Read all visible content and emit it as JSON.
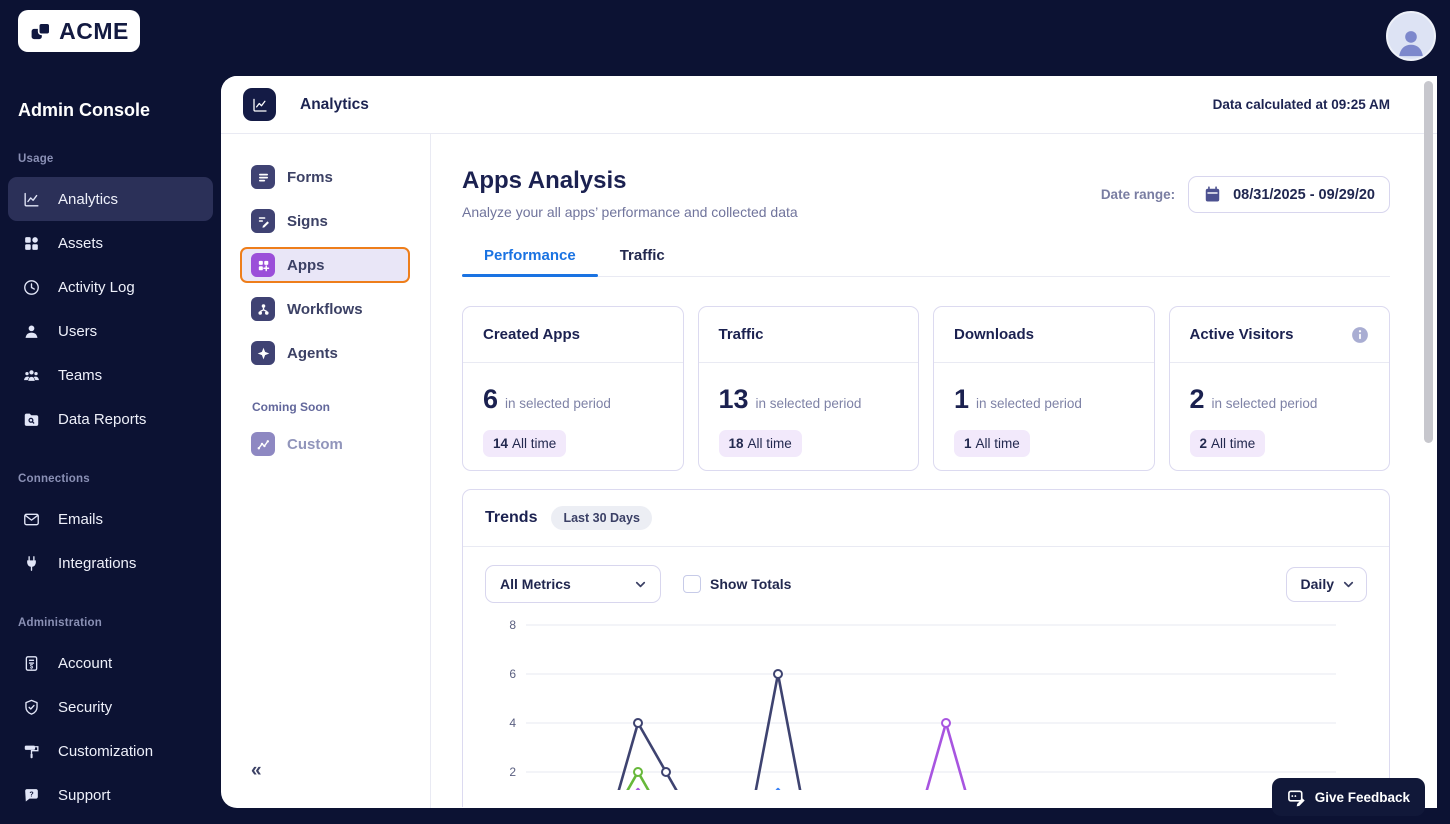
{
  "topbar": {
    "logo_text": "ACME"
  },
  "sidebar": {
    "title": "Admin Console",
    "sections": [
      {
        "label": "Usage",
        "items": [
          {
            "label": "Analytics",
            "icon": "analytics",
            "active": true
          },
          {
            "label": "Assets",
            "icon": "assets"
          },
          {
            "label": "Activity Log",
            "icon": "activity-log"
          },
          {
            "label": "Users",
            "icon": "users"
          },
          {
            "label": "Teams",
            "icon": "teams"
          },
          {
            "label": "Data Reports",
            "icon": "data-reports"
          }
        ]
      },
      {
        "label": "Connections",
        "items": [
          {
            "label": "Emails",
            "icon": "emails"
          },
          {
            "label": "Integrations",
            "icon": "integrations"
          }
        ]
      },
      {
        "label": "Administration",
        "items": [
          {
            "label": "Account",
            "icon": "account"
          },
          {
            "label": "Security",
            "icon": "security"
          },
          {
            "label": "Customization",
            "icon": "customization"
          },
          {
            "label": "Support",
            "icon": "support"
          }
        ]
      }
    ]
  },
  "header": {
    "title": "Analytics",
    "status": "Data calculated at 09:25 AM"
  },
  "subnav": {
    "items": [
      {
        "label": "Forms",
        "icon": "forms",
        "icon_bg": "#3f4273"
      },
      {
        "label": "Signs",
        "icon": "signs",
        "icon_bg": "#3f4273"
      },
      {
        "label": "Apps",
        "icon": "apps",
        "icon_bg": "#9b4fd9",
        "active": true
      },
      {
        "label": "Workflows",
        "icon": "workflows",
        "icon_bg": "#3f4273"
      },
      {
        "label": "Agents",
        "icon": "agents",
        "icon_bg": "#3f4273"
      }
    ],
    "coming_soon_label": "Coming Soon",
    "coming_soon_items": [
      {
        "label": "Custom",
        "icon": "custom",
        "icon_bg": "#8e88c2",
        "muted": true
      }
    ],
    "collapse_glyph": "«"
  },
  "page": {
    "title": "Apps Analysis",
    "subtitle": "Analyze your all apps’ performance and collected data",
    "date_range_label": "Date range:",
    "date_range_value": "08/31/2025 - 09/29/20",
    "tabs": [
      {
        "label": "Performance",
        "active": true
      },
      {
        "label": "Traffic",
        "active": false
      }
    ]
  },
  "stats": [
    {
      "title": "Created Apps",
      "value": "6",
      "period_text": "in selected period",
      "alltime_value": "14",
      "alltime_text": "All time",
      "info": false
    },
    {
      "title": "Traffic",
      "value": "13",
      "period_text": "in selected period",
      "alltime_value": "18",
      "alltime_text": "All time",
      "info": false
    },
    {
      "title": "Downloads",
      "value": "1",
      "period_text": "in selected period",
      "alltime_value": "1",
      "alltime_text": "All time",
      "info": false
    },
    {
      "title": "Active Visitors",
      "value": "2",
      "period_text": "in selected period",
      "alltime_value": "2",
      "alltime_text": "All time",
      "info": true
    }
  ],
  "trends": {
    "title": "Trends",
    "badge": "Last 30 Days",
    "metric_select": "All Metrics",
    "show_totals_label": "Show Totals",
    "show_totals_checked": false,
    "interval_select": "Daily"
  },
  "feedback": {
    "label": "Give Feedback"
  },
  "chart_data": {
    "type": "line",
    "title": "Trends",
    "x_unit": "day",
    "x_count": 30,
    "x_tick_labels_visible": false,
    "y_ticks": [
      2,
      4,
      6,
      8
    ],
    "ylim": [
      0,
      8
    ],
    "grid": true,
    "legend_position": "none",
    "note": "bottom of chart clipped by viewport; values near 0 only partially visible",
    "series": [
      {
        "name": "Traffic",
        "color": "#3e4370",
        "points": [
          [
            3,
            0
          ],
          [
            4,
            4
          ],
          [
            5,
            2
          ],
          [
            6,
            0
          ],
          [
            8,
            0
          ],
          [
            9,
            6
          ],
          [
            10,
            0
          ]
        ]
      },
      {
        "name": "Active Visitors",
        "color": "#67b83a",
        "points": [
          [
            3,
            0
          ],
          [
            4,
            2
          ],
          [
            5,
            0
          ]
        ]
      },
      {
        "name": "Created Apps",
        "color": "#a855e0",
        "points": [
          [
            3,
            0
          ],
          [
            4,
            1.3
          ],
          [
            5,
            0
          ],
          [
            14,
            0
          ],
          [
            15,
            4
          ],
          [
            16,
            0
          ]
        ]
      },
      {
        "name": "Downloads",
        "color": "#3b82f6",
        "points": [
          [
            8,
            0
          ],
          [
            9,
            1.3
          ],
          [
            10,
            0
          ]
        ]
      }
    ]
  },
  "colors": {
    "topbar_bg": "#0c1233",
    "sidebar_selected_bg": "#2b3058",
    "selected_border_orange": "#ee7e1b",
    "selected_fill_lilac": "#e9e6f7",
    "active_tab_blue": "#1a73e2",
    "heading_navy": "#1b2150",
    "pill_lilac_bg": "#f2e9fb",
    "series_navy": "#3e4370",
    "series_green": "#67b83a",
    "series_purple": "#a855e0",
    "series_blue": "#3b82f6"
  }
}
